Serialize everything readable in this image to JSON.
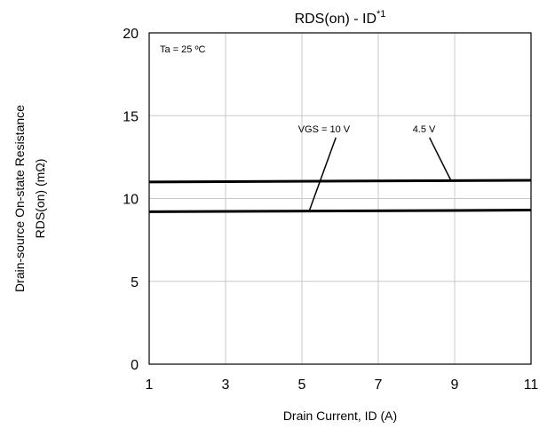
{
  "chart_data": {
    "type": "line",
    "title": "RDS(on) - ID",
    "title_superscript": "*1",
    "xlabel": "Drain Current, ID (A)",
    "ylabel": [
      "Drain-source On-state Resistance",
      "RDS(on) (mΩ)"
    ],
    "xlim": [
      1,
      11
    ],
    "ylim": [
      0,
      20
    ],
    "x_ticks": [
      1,
      3,
      5,
      7,
      9,
      11
    ],
    "y_ticks": [
      0,
      5,
      10,
      15,
      20
    ],
    "grid": true,
    "condition_label": "Ta = 25 ºC",
    "series": [
      {
        "name": "VGS = 10 V",
        "x": [
          1,
          11
        ],
        "y": [
          9.2,
          9.3
        ],
        "label_at": [
          4.9,
          14.0
        ],
        "leader_to": [
          5.2,
          9.3
        ]
      },
      {
        "name": "4.5 V",
        "x": [
          1,
          11
        ],
        "y": [
          11.0,
          11.1
        ],
        "label_at": [
          7.9,
          14.0
        ],
        "leader_to": [
          8.9,
          11.1
        ]
      }
    ]
  }
}
